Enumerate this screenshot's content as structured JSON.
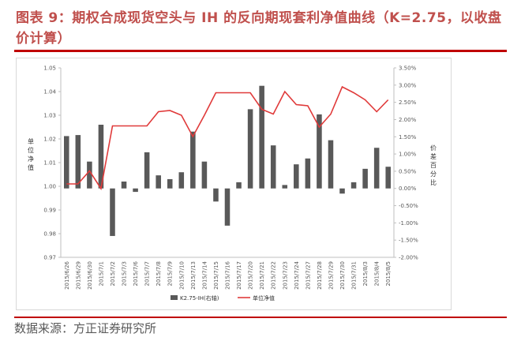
{
  "header": {
    "title": "图表 9：期权合成现货空头与 IH 的反向期现套利净值曲线（K=2.75，以收盘价计算）"
  },
  "footer": {
    "source": "数据来源：方正证券研究所"
  },
  "chart_data": {
    "type": "bar+line",
    "categories": [
      "2015/6/26",
      "2015/6/29",
      "2015/6/30",
      "2015/7/1",
      "2015/7/2",
      "2015/7/3",
      "2015/7/6",
      "2015/7/7",
      "2015/7/8",
      "2015/7/9",
      "2015/7/10",
      "2015/7/13",
      "2015/7/14",
      "2015/7/15",
      "2015/7/16",
      "2015/7/17",
      "2015/7/20",
      "2015/7/21",
      "2015/7/22",
      "2015/7/23",
      "2015/7/24",
      "2015/7/27",
      "2015/7/28",
      "2015/7/29",
      "2015/7/30",
      "2015/7/31",
      "2015/8/3",
      "2015/8/4",
      "2015/8/5"
    ],
    "series": [
      {
        "name": "K2.75-IH(右轴)",
        "type": "bar",
        "axis": "right",
        "color": "#595959",
        "values": [
          1.52,
          1.55,
          0.78,
          1.85,
          -1.38,
          0.2,
          -0.1,
          1.05,
          0.38,
          0.27,
          0.47,
          1.65,
          0.78,
          -0.38,
          -1.08,
          0.18,
          2.3,
          2.98,
          1.25,
          0.1,
          0.7,
          0.87,
          2.15,
          1.4,
          -0.15,
          0.18,
          0.57,
          1.18,
          0.63
        ]
      },
      {
        "name": "单位净值",
        "type": "line",
        "axis": "left",
        "color": "#e03a3a",
        "values": [
          1.001,
          1.001,
          1.0065,
          0.999,
          1.0255,
          1.0255,
          1.0255,
          1.0255,
          1.0315,
          1.032,
          1.03,
          1.021,
          1.03,
          1.0395,
          1.0395,
          1.0395,
          1.0395,
          1.0325,
          1.0305,
          1.04,
          1.0345,
          1.034,
          1.025,
          1.0305,
          1.042,
          1.0395,
          1.0365,
          1.0315,
          1.0365
        ]
      }
    ],
    "left_axis": {
      "label": "单位净值",
      "min": 0.97,
      "max": 1.05,
      "ticks": [
        "0.97",
        "0.98",
        "0.99",
        "1.00",
        "1.01",
        "1.02",
        "1.03",
        "1.04",
        "1.05"
      ]
    },
    "right_axis": {
      "label": "价差百分比",
      "min": -2.0,
      "max": 3.5,
      "ticks": [
        "-2.00%",
        "-1.50%",
        "-1.00%",
        "-0.50%",
        "0.00%",
        "0.50%",
        "1.00%",
        "1.50%",
        "2.00%",
        "2.50%",
        "3.00%",
        "3.50%"
      ]
    },
    "legend": {
      "placement": "bottom",
      "bar_label": "K2.75-IH(右轴)",
      "line_label": "单位净值"
    },
    "grid": false
  }
}
